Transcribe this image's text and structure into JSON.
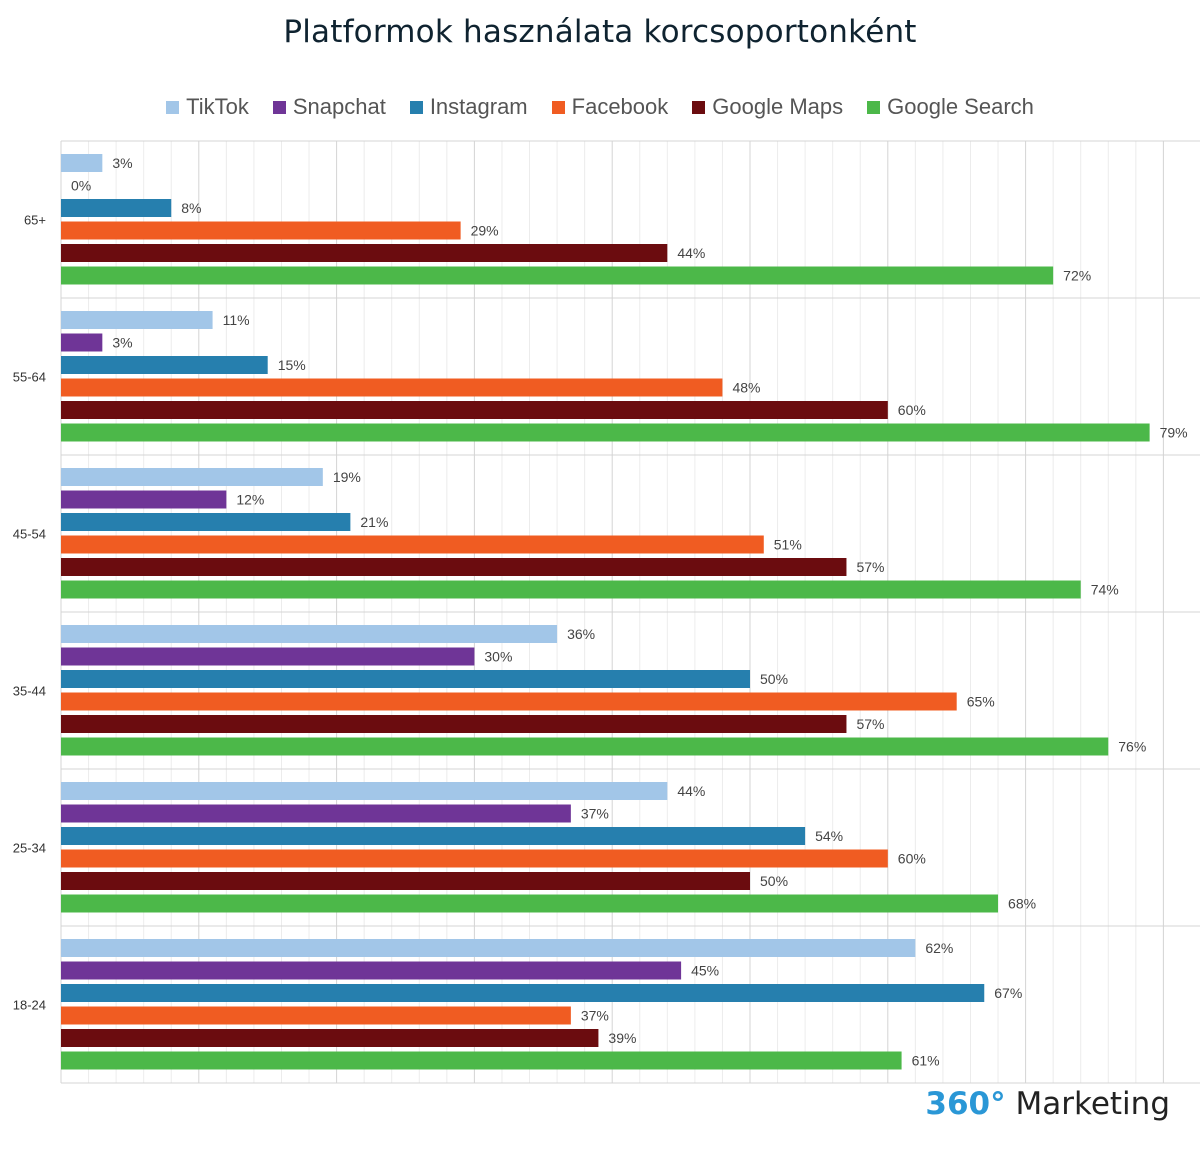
{
  "chart_data": {
    "type": "bar",
    "orientation": "horizontal",
    "title": "Platformok használata korcsoportonként",
    "categories": [
      "65+",
      "55-64",
      "45-54",
      "35-44",
      "25-34",
      "18-24"
    ],
    "series": [
      {
        "name": "TikTok",
        "color": "#a2c6e8",
        "values": [
          3,
          11,
          19,
          36,
          44,
          62
        ],
        "labels": [
          "3%",
          "11%",
          "19%",
          "36%",
          "44%",
          "62%"
        ]
      },
      {
        "name": "Snapchat",
        "color": "#6f3597",
        "values": [
          0,
          3,
          12,
          30,
          37,
          45
        ],
        "labels": [
          "0%",
          "3%",
          "12%",
          "30%",
          "37%",
          "45%"
        ]
      },
      {
        "name": "Instagram",
        "color": "#267fae",
        "values": [
          8,
          15,
          21,
          50,
          54,
          67
        ],
        "labels": [
          "8%",
          "15%",
          "21%",
          "50%",
          "54%",
          "67%"
        ]
      },
      {
        "name": "Facebook",
        "color": "#f05c22",
        "values": [
          29,
          48,
          51,
          65,
          60,
          37
        ],
        "labels": [
          "29%",
          "48%",
          "51%",
          "65%",
          "60%",
          "37%"
        ]
      },
      {
        "name": "Google Maps",
        "color": "#6b0c0f",
        "values": [
          44,
          60,
          57,
          57,
          50,
          39
        ],
        "labels": [
          "44%",
          "60%",
          "57%",
          "57%",
          "50%",
          "39%"
        ]
      },
      {
        "name": "Google Search",
        "color": "#4cb849",
        "values": [
          72,
          79,
          74,
          76,
          68,
          61
        ],
        "labels": [
          "72%",
          "79%",
          "74%",
          "76%",
          "68%",
          "61%"
        ]
      }
    ],
    "xlim": [
      0,
      80
    ],
    "grid": true,
    "legend_position": "top"
  },
  "branding": {
    "number": "360°",
    "text": " Marketing",
    "number_color": "#2a97d6"
  }
}
